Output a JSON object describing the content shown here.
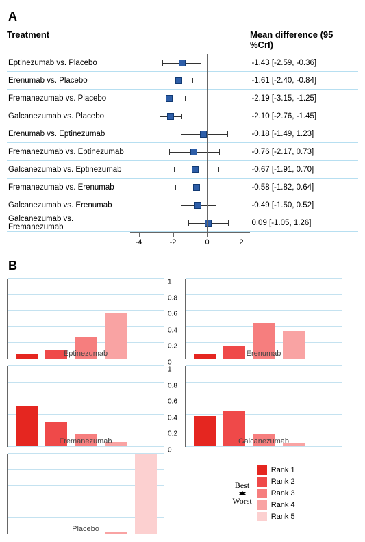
{
  "panelA": {
    "label": "A",
    "headers": {
      "treatment": "Treatment",
      "ci": "Mean difference (95 %CrI)"
    },
    "xmin": -4.5,
    "xmax": 2.5,
    "ticks": [
      -4,
      -2,
      0,
      2
    ],
    "zero": 0,
    "rows": [
      {
        "label": "Eptinezumab vs. Placebo",
        "est": -1.43,
        "lo": -2.59,
        "hi": -0.36,
        "ci": "-1.43 [-2.59, -0.36]"
      },
      {
        "label": "Erenumab vs. Placebo",
        "est": -1.61,
        "lo": -2.4,
        "hi": -0.84,
        "ci": "-1.61 [-2.40, -0.84]"
      },
      {
        "label": "Fremanezumab vs. Placebo",
        "est": -2.19,
        "lo": -3.15,
        "hi": -1.25,
        "ci": "-2.19 [-3.15, -1.25]"
      },
      {
        "label": "Galcanezumab vs. Placebo",
        "est": -2.1,
        "lo": -2.76,
        "hi": -1.45,
        "ci": "-2.10 [-2.76, -1.45]"
      },
      {
        "label": "Erenumab vs. Eptinezumab",
        "est": -0.18,
        "lo": -1.49,
        "hi": 1.23,
        "ci": "-0.18 [-1.49, 1.23]"
      },
      {
        "label": "Fremanezumab vs. Eptinezumab",
        "est": -0.76,
        "lo": -2.17,
        "hi": 0.73,
        "ci": "-0.76 [-2.17, 0.73]"
      },
      {
        "label": "Galcanezumab vs. Eptinezumab",
        "est": -0.67,
        "lo": -1.91,
        "hi": 0.7,
        "ci": "-0.67 [-1.91, 0.70]"
      },
      {
        "label": "Fremanezumab vs. Erenumab",
        "est": -0.58,
        "lo": -1.82,
        "hi": 0.64,
        "ci": "-0.58 [-1.82, 0.64]"
      },
      {
        "label": "Galcanezumab vs. Erenumab",
        "est": -0.49,
        "lo": -1.5,
        "hi": 0.52,
        "ci": "-0.49 [-1.50, 0.52]"
      },
      {
        "label": "Galcanezumab vs. Fremanezumab",
        "est": 0.09,
        "lo": -1.05,
        "hi": 1.26,
        "ci": "0.09 [-1.05, 1.26]"
      }
    ],
    "colors": {
      "marker": "#2e5ea8",
      "markerBorder": "#123a73",
      "rowBorder": "#b7dff1",
      "axis": "#666666",
      "whisker": "#333333"
    }
  },
  "panelB": {
    "label": "B",
    "ylim": [
      0,
      1
    ],
    "yticks": [
      0,
      0.2,
      0.4,
      0.6,
      0.8,
      1
    ],
    "rankColors": [
      "#e52620",
      "#ef4949",
      "#f67e7e",
      "#f9a3a3",
      "#fcd0d0"
    ],
    "charts": [
      {
        "name": "Eptinezumab",
        "values": [
          0.06,
          0.11,
          0.27,
          0.56,
          0.0
        ]
      },
      {
        "name": "Erenumab",
        "values": [
          0.06,
          0.16,
          0.44,
          0.34,
          0.0
        ]
      },
      {
        "name": "Fremanezumab",
        "values": [
          0.5,
          0.3,
          0.15,
          0.05,
          0.0
        ]
      },
      {
        "name": "Galcanezumab",
        "values": [
          0.37,
          0.44,
          0.15,
          0.04,
          0.0
        ]
      },
      {
        "name": "Placebo",
        "values": [
          0.0,
          0.0,
          0.0,
          0.02,
          0.98
        ]
      }
    ],
    "legend": {
      "best": "Best",
      "worst": "Worst",
      "items": [
        "Rank 1",
        "Rank 2",
        "Rank 3",
        "Rank 4",
        "Rank 5"
      ]
    }
  }
}
